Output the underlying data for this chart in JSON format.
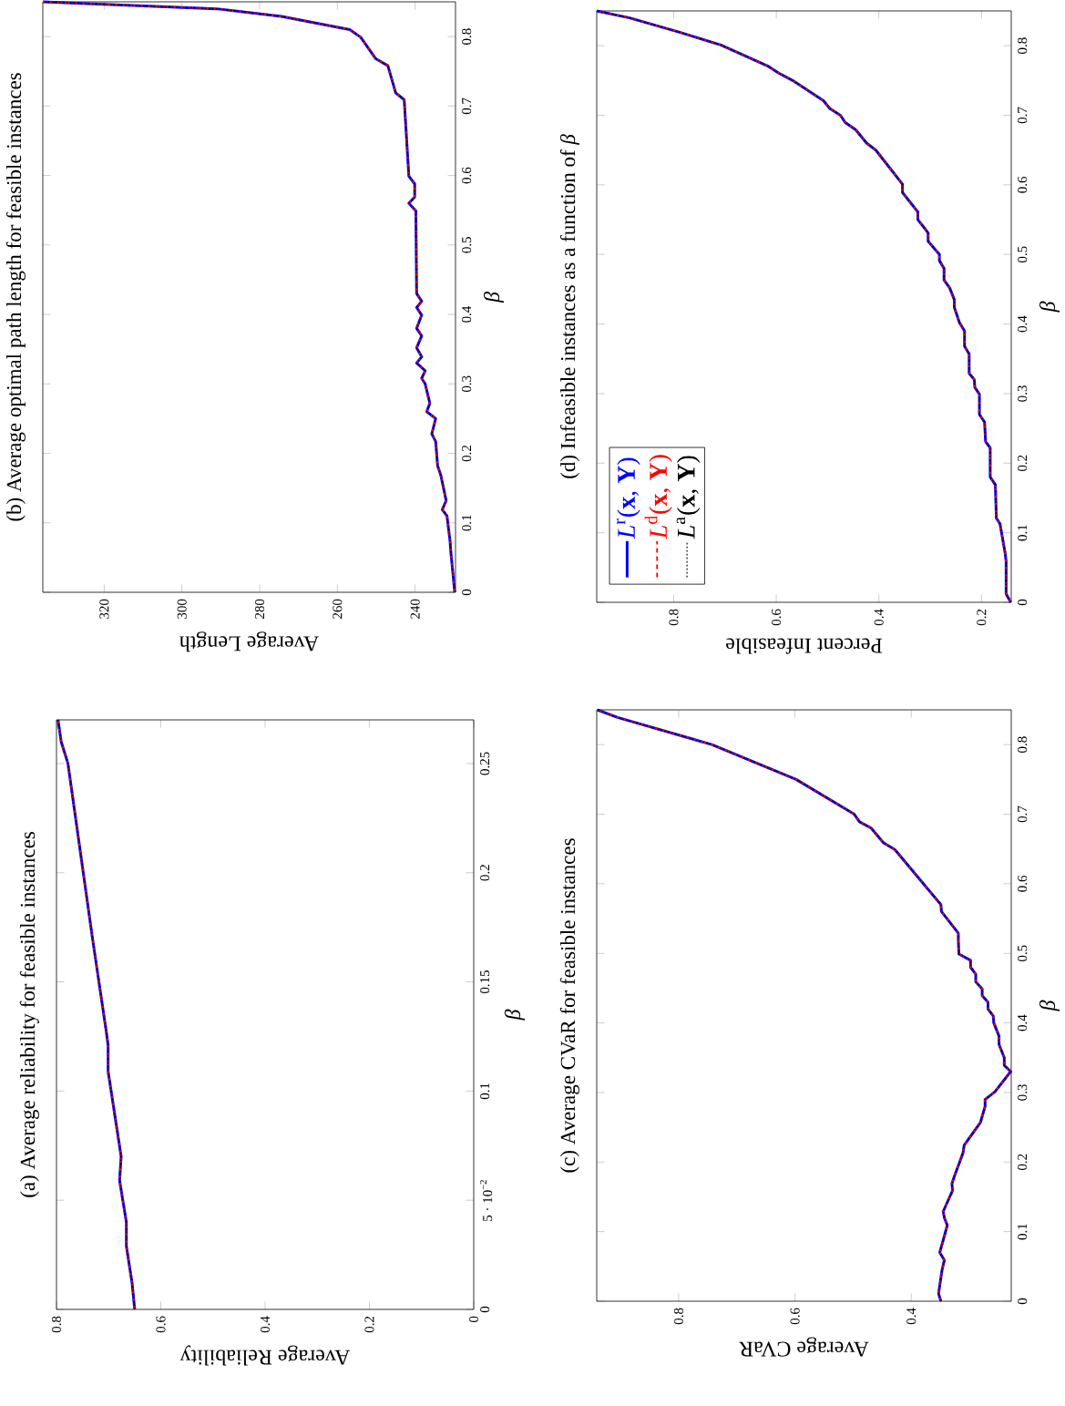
{
  "chart_data": [
    {
      "type": "line",
      "title": "(a) Average reliability for feasible instances",
      "xlabel": "Average Reliability",
      "ylabel": "*β*",
      "x": [
        0.65,
        0.655,
        0.666,
        0.666,
        0.679,
        0.676,
        0.701,
        0.701,
        0.705,
        0.731,
        0.778,
        0.791,
        0.797
      ],
      "series": [
        {
          "color": "#0000ff",
          "line_style": "solid",
          "values": [
            0,
            0.012,
            0.029,
            0.04,
            0.059,
            0.07,
            0.109,
            0.121,
            0.128,
            0.17,
            0.25,
            0.26,
            0.27
          ]
        },
        {
          "color": "#ff0000",
          "line_style": "dashed",
          "values": [
            0,
            0.012,
            0.029,
            0.04,
            0.059,
            0.07,
            0.109,
            0.121,
            0.128,
            0.17,
            0.25,
            0.26,
            0.27
          ]
        },
        {
          "color": "#000000",
          "line_style": "dotted",
          "values": [
            0,
            0.012,
            0.029,
            0.04,
            0.059,
            0.07,
            0.109,
            0.121,
            0.128,
            0.17,
            0.25,
            0.26,
            0.27
          ]
        }
      ],
      "xlim": [
        0.8,
        0
      ],
      "ylim": [
        0,
        0.27
      ],
      "xticks": [
        0,
        0.2,
        0.4,
        0.6,
        0.8
      ],
      "yticks": [
        0,
        {
          "value": 0.05,
          "label": "5 · 10$^{−2}$"
        },
        0.1,
        0.15,
        0.2,
        0.25
      ]
    },
    {
      "type": "line",
      "title": "(b) Average optimal path length for feasible instances",
      "xlabel": "Average Length",
      "ylabel": "*β*",
      "x": [
        229.8,
        230.8,
        231.0,
        231.8,
        233.0,
        232.0,
        233.4,
        234.2,
        234.7,
        235.7,
        234.7,
        237.0,
        236.2,
        237.4,
        238.3,
        237.4,
        239.6,
        238.3,
        239.6,
        238.3,
        239.6,
        238.3,
        239.6,
        238.3,
        239.6,
        239.8,
        241.6,
        240.1,
        240.1,
        241.6,
        242.8,
        245.0,
        247.0,
        250.1,
        254.0,
        256.8,
        274.4,
        291.1,
        335.8
      ],
      "series": [
        {
          "color": "#0000ff",
          "line_style": "solid",
          "values": [
            0,
            0.058,
            0.074,
            0.11,
            0.119,
            0.132,
            0.169,
            0.182,
            0.217,
            0.228,
            0.25,
            0.26,
            0.272,
            0.3,
            0.308,
            0.319,
            0.33,
            0.339,
            0.352,
            0.369,
            0.38,
            0.399,
            0.41,
            0.419,
            0.43,
            0.549,
            0.56,
            0.569,
            0.588,
            0.599,
            0.709,
            0.719,
            0.758,
            0.768,
            0.799,
            0.81,
            0.829,
            0.84,
            0.85
          ]
        },
        {
          "color": "#ff0000",
          "line_style": "dashed",
          "values": [
            0,
            0.058,
            0.074,
            0.11,
            0.119,
            0.132,
            0.169,
            0.182,
            0.217,
            0.228,
            0.25,
            0.26,
            0.272,
            0.3,
            0.308,
            0.319,
            0.33,
            0.339,
            0.352,
            0.369,
            0.38,
            0.399,
            0.41,
            0.419,
            0.43,
            0.549,
            0.56,
            0.569,
            0.588,
            0.599,
            0.709,
            0.719,
            0.758,
            0.768,
            0.799,
            0.81,
            0.829,
            0.84,
            0.85
          ]
        },
        {
          "color": "#000000",
          "line_style": "dotted",
          "values": [
            0,
            0.058,
            0.074,
            0.11,
            0.119,
            0.132,
            0.169,
            0.182,
            0.217,
            0.228,
            0.25,
            0.26,
            0.272,
            0.3,
            0.308,
            0.319,
            0.33,
            0.339,
            0.352,
            0.369,
            0.38,
            0.399,
            0.41,
            0.419,
            0.43,
            0.549,
            0.56,
            0.569,
            0.588,
            0.599,
            0.709,
            0.719,
            0.758,
            0.768,
            0.799,
            0.81,
            0.829,
            0.84,
            0.85
          ]
        }
      ],
      "xlim": [
        335.8,
        229.6
      ],
      "ylim": [
        0,
        0.85
      ],
      "xticks": [
        240,
        260,
        280,
        300,
        320
      ],
      "yticks": [
        0,
        0.1,
        0.2,
        0.3,
        0.4,
        0.5,
        0.6,
        0.7,
        0.8
      ]
    },
    {
      "type": "line",
      "title": "(c) Average CVaR for feasible instances",
      "xlabel": "Average CVaR",
      "ylabel": "*β*",
      "x": [
        0.349,
        0.353,
        0.347,
        0.343,
        0.351,
        0.338,
        0.343,
        0.345,
        0.329,
        0.33,
        0.326,
        0.311,
        0.309,
        0.281,
        0.273,
        0.273,
        0.256,
        0.229,
        0.24,
        0.24,
        0.249,
        0.249,
        0.258,
        0.259,
        0.268,
        0.268,
        0.278,
        0.278,
        0.289,
        0.289,
        0.298,
        0.298,
        0.318,
        0.319,
        0.319,
        0.348,
        0.349,
        0.428,
        0.448,
        0.469,
        0.489,
        0.498,
        0.598,
        0.743,
        0.905,
        0.94
      ],
      "series": [
        {
          "color": "#0000ff",
          "line_style": "solid",
          "values": [
            0,
            0.011,
            0.045,
            0.059,
            0.07,
            0.109,
            0.12,
            0.129,
            0.159,
            0.169,
            0.179,
            0.213,
            0.224,
            0.257,
            0.28,
            0.29,
            0.301,
            0.33,
            0.339,
            0.35,
            0.369,
            0.381,
            0.4,
            0.41,
            0.42,
            0.43,
            0.439,
            0.449,
            0.459,
            0.47,
            0.48,
            0.49,
            0.499,
            0.519,
            0.529,
            0.56,
            0.57,
            0.649,
            0.659,
            0.68,
            0.689,
            0.7,
            0.75,
            0.8,
            0.839,
            0.85
          ]
        },
        {
          "color": "#ff0000",
          "line_style": "dashed",
          "values": [
            0,
            0.011,
            0.045,
            0.059,
            0.07,
            0.109,
            0.12,
            0.129,
            0.159,
            0.169,
            0.179,
            0.213,
            0.224,
            0.257,
            0.28,
            0.29,
            0.301,
            0.33,
            0.339,
            0.35,
            0.369,
            0.381,
            0.4,
            0.41,
            0.42,
            0.43,
            0.439,
            0.449,
            0.459,
            0.47,
            0.48,
            0.49,
            0.499,
            0.519,
            0.529,
            0.56,
            0.57,
            0.649,
            0.659,
            0.68,
            0.689,
            0.7,
            0.75,
            0.8,
            0.839,
            0.85
          ]
        },
        {
          "color": "#000000",
          "line_style": "dotted",
          "values": [
            0,
            0.011,
            0.045,
            0.059,
            0.07,
            0.109,
            0.12,
            0.129,
            0.159,
            0.169,
            0.179,
            0.213,
            0.224,
            0.257,
            0.28,
            0.29,
            0.301,
            0.33,
            0.339,
            0.35,
            0.369,
            0.381,
            0.4,
            0.41,
            0.42,
            0.43,
            0.439,
            0.449,
            0.459,
            0.47,
            0.48,
            0.49,
            0.499,
            0.519,
            0.529,
            0.56,
            0.57,
            0.649,
            0.659,
            0.68,
            0.689,
            0.7,
            0.75,
            0.8,
            0.839,
            0.85
          ]
        }
      ],
      "xlim": [
        0.941,
        0.228
      ],
      "ylim": [
        0,
        0.85
      ],
      "xticks": [
        0.4,
        0.6,
        0.8
      ],
      "yticks": [
        0,
        0.1,
        0.2,
        0.3,
        0.4,
        0.5,
        0.6,
        0.7,
        0.8
      ]
    },
    {
      "type": "line",
      "title": "(d) Infeasible instances as a function of *β*",
      "xlabel": "Percent Infeasible",
      "ylabel": "*β*",
      "legend": "bottom left",
      "x": [
        0.143,
        0.152,
        0.152,
        0.154,
        0.164,
        0.171,
        0.173,
        0.183,
        0.183,
        0.192,
        0.194,
        0.204,
        0.204,
        0.213,
        0.214,
        0.224,
        0.224,
        0.233,
        0.233,
        0.243,
        0.253,
        0.253,
        0.262,
        0.273,
        0.273,
        0.282,
        0.282,
        0.304,
        0.304,
        0.324,
        0.324,
        0.354,
        0.354,
        0.406,
        0.424,
        0.445,
        0.466,
        0.475,
        0.496,
        0.508,
        0.568,
        0.596,
        0.617,
        0.708,
        0.787,
        0.886,
        0.95
      ],
      "series": [
        {
          "name": "*L*$^{r}$(**x**, **Y**)",
          "color": "#0000ff",
          "line_style": "solid",
          "values": [
            0,
            0.012,
            0.059,
            0.071,
            0.113,
            0.121,
            0.169,
            0.18,
            0.222,
            0.231,
            0.259,
            0.27,
            0.299,
            0.309,
            0.32,
            0.329,
            0.357,
            0.368,
            0.39,
            0.402,
            0.424,
            0.435,
            0.452,
            0.463,
            0.48,
            0.491,
            0.5,
            0.519,
            0.531,
            0.55,
            0.561,
            0.589,
            0.601,
            0.65,
            0.66,
            0.679,
            0.69,
            0.7,
            0.71,
            0.721,
            0.75,
            0.761,
            0.771,
            0.801,
            0.819,
            0.84,
            0.85
          ]
        },
        {
          "name": "*L*$^{d}$(**x**, **Y**)",
          "color": "#ff0000",
          "line_style": "dashed",
          "values": [
            0,
            0.012,
            0.059,
            0.071,
            0.113,
            0.121,
            0.169,
            0.18,
            0.222,
            0.231,
            0.259,
            0.27,
            0.299,
            0.309,
            0.32,
            0.329,
            0.357,
            0.368,
            0.39,
            0.402,
            0.424,
            0.435,
            0.452,
            0.463,
            0.48,
            0.491,
            0.5,
            0.519,
            0.531,
            0.55,
            0.561,
            0.589,
            0.601,
            0.65,
            0.66,
            0.679,
            0.69,
            0.7,
            0.71,
            0.721,
            0.75,
            0.761,
            0.771,
            0.801,
            0.819,
            0.84,
            0.85
          ]
        },
        {
          "name": "*L*$^{a}$(**x**, **Y**)",
          "color": "#000000",
          "line_style": "dotted",
          "values": [
            0,
            0.012,
            0.059,
            0.071,
            0.113,
            0.121,
            0.169,
            0.18,
            0.222,
            0.231,
            0.259,
            0.27,
            0.299,
            0.309,
            0.32,
            0.329,
            0.357,
            0.368,
            0.39,
            0.402,
            0.424,
            0.435,
            0.452,
            0.463,
            0.48,
            0.491,
            0.5,
            0.519,
            0.531,
            0.55,
            0.561,
            0.589,
            0.601,
            0.65,
            0.66,
            0.679,
            0.69,
            0.7,
            0.71,
            0.721,
            0.75,
            0.761,
            0.771,
            0.801,
            0.819,
            0.84,
            0.85
          ]
        }
      ],
      "xlim": [
        0.95,
        0.142
      ],
      "ylim": [
        0,
        0.85
      ],
      "xticks": [
        0.2,
        0.4,
        0.6,
        0.8
      ],
      "yticks": [
        0,
        0.1,
        0.2,
        0.3,
        0.4,
        0.5,
        0.6,
        0.7,
        0.8
      ]
    }
  ]
}
